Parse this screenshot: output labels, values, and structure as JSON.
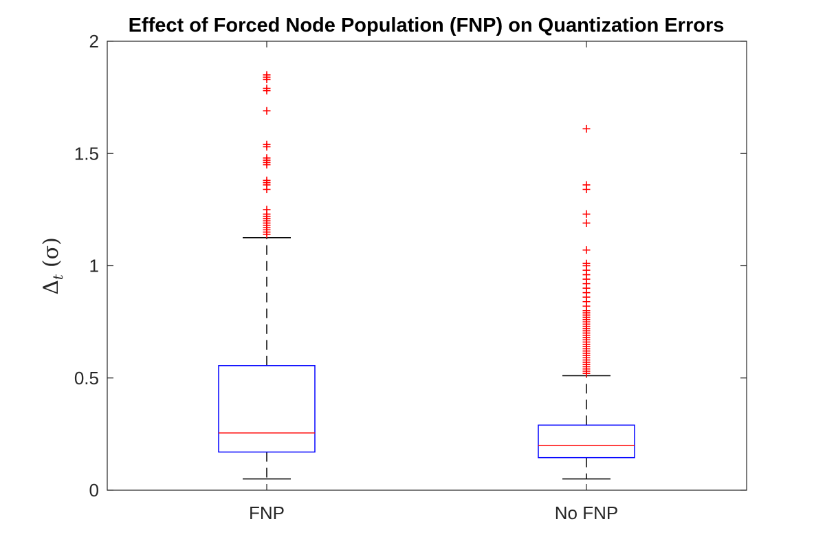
{
  "chart_data": {
    "type": "box",
    "title": "Effect of Forced Node Population (FNP) on Quantization Errors",
    "ylabel": {
      "main": "Δ",
      "sub": "t",
      "unit": "(σ)"
    },
    "xlabel": "",
    "ylim": [
      0,
      2
    ],
    "yticks": [
      0,
      0.5,
      1,
      1.5,
      2
    ],
    "ytick_labels": [
      "0",
      "0.5",
      "1",
      "1.5",
      "2"
    ],
    "grid": false,
    "colors": {
      "box": "#0000ff",
      "median": "#ff0000",
      "whisker": "#000000",
      "outlier": "#ff0000",
      "axis": "#262626"
    },
    "categories": [
      "FNP",
      "No FNP"
    ],
    "boxes": [
      {
        "label": "FNP",
        "whisker_low": 0.05,
        "q1": 0.17,
        "median": 0.255,
        "q3": 0.555,
        "whisker_high": 1.125,
        "outliers": [
          1.14,
          1.15,
          1.16,
          1.17,
          1.18,
          1.19,
          1.2,
          1.21,
          1.22,
          1.23,
          1.25,
          1.34,
          1.36,
          1.37,
          1.38,
          1.45,
          1.46,
          1.47,
          1.48,
          1.53,
          1.54,
          1.69,
          1.78,
          1.79,
          1.83,
          1.84,
          1.85
        ]
      },
      {
        "label": "No FNP",
        "whisker_low": 0.05,
        "q1": 0.145,
        "median": 0.2,
        "q3": 0.29,
        "whisker_high": 0.51,
        "outliers": [
          0.52,
          0.53,
          0.54,
          0.55,
          0.56,
          0.57,
          0.58,
          0.59,
          0.6,
          0.61,
          0.62,
          0.63,
          0.64,
          0.65,
          0.66,
          0.67,
          0.68,
          0.69,
          0.7,
          0.71,
          0.72,
          0.73,
          0.74,
          0.75,
          0.76,
          0.77,
          0.78,
          0.79,
          0.8,
          0.82,
          0.84,
          0.86,
          0.88,
          0.9,
          0.92,
          0.94,
          0.96,
          0.98,
          1.0,
          1.01,
          1.07,
          1.19,
          1.23,
          1.34,
          1.36,
          1.61
        ]
      }
    ]
  }
}
